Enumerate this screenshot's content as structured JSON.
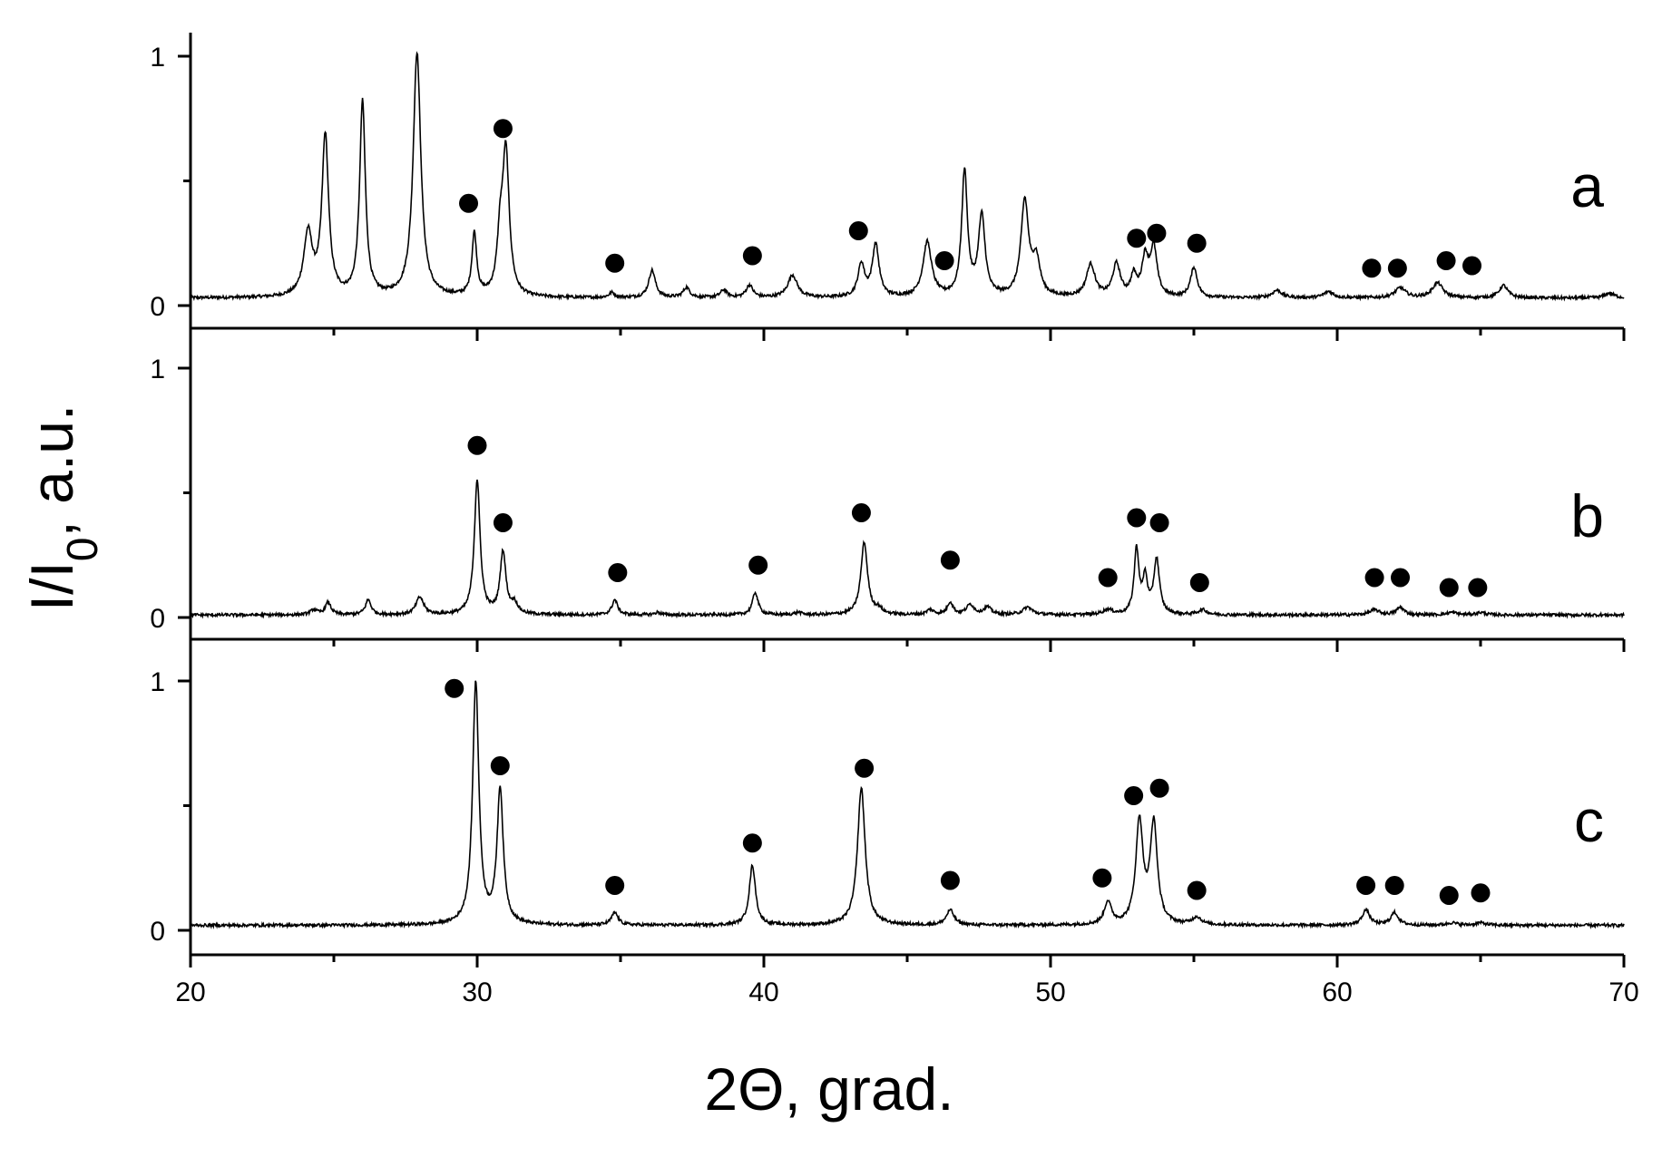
{
  "chart_data": {
    "type": "line",
    "xlabel": "2Θ, grad.",
    "ylabel": "I/I0, a.u.",
    "xlim": [
      20,
      70
    ],
    "ylim": [
      -0.1,
      1.1
    ],
    "xticks": [
      20,
      30,
      40,
      50,
      60,
      70
    ],
    "xtick_labels": [
      "20",
      "30",
      "40",
      "50",
      "60",
      "70"
    ],
    "yticks": [
      0,
      1
    ],
    "ytick_labels": [
      "0",
      "1"
    ],
    "grid": false,
    "legend": "none",
    "marker_symbol": "filled-circle",
    "line_color": "#000000",
    "panels": [
      {
        "label": "a",
        "baseline": 0.03,
        "peaks": [
          [
            24.1,
            0.25,
            0.18
          ],
          [
            24.7,
            0.64,
            0.14
          ],
          [
            26.0,
            0.78,
            0.12
          ],
          [
            27.9,
            0.98,
            0.16
          ],
          [
            29.9,
            0.25,
            0.1
          ],
          [
            30.8,
            0.2,
            0.12
          ],
          [
            31.0,
            0.57,
            0.14
          ],
          [
            34.7,
            0.02,
            0.12
          ],
          [
            36.1,
            0.11,
            0.14
          ],
          [
            37.3,
            0.04,
            0.14
          ],
          [
            38.6,
            0.03,
            0.14
          ],
          [
            39.5,
            0.05,
            0.14
          ],
          [
            41.0,
            0.09,
            0.2
          ],
          [
            43.4,
            0.13,
            0.14
          ],
          [
            43.9,
            0.21,
            0.14
          ],
          [
            45.7,
            0.22,
            0.18
          ],
          [
            47.0,
            0.5,
            0.12
          ],
          [
            47.6,
            0.32,
            0.14
          ],
          [
            49.1,
            0.38,
            0.16
          ],
          [
            49.5,
            0.14,
            0.16
          ],
          [
            51.4,
            0.13,
            0.18
          ],
          [
            52.3,
            0.13,
            0.16
          ],
          [
            52.9,
            0.08,
            0.12
          ],
          [
            53.3,
            0.15,
            0.14
          ],
          [
            53.6,
            0.19,
            0.14
          ],
          [
            55.0,
            0.12,
            0.14
          ],
          [
            57.9,
            0.03,
            0.2
          ],
          [
            59.7,
            0.025,
            0.2
          ],
          [
            62.2,
            0.04,
            0.22
          ],
          [
            63.5,
            0.06,
            0.22
          ],
          [
            65.8,
            0.05,
            0.18
          ],
          [
            69.5,
            0.02,
            0.2
          ]
        ],
        "markers": [
          {
            "x": 29.7,
            "y": 0.41
          },
          {
            "x": 30.9,
            "y": 0.71
          },
          {
            "x": 34.8,
            "y": 0.17
          },
          {
            "x": 39.6,
            "y": 0.2
          },
          {
            "x": 43.3,
            "y": 0.3
          },
          {
            "x": 46.3,
            "y": 0.18
          },
          {
            "x": 53.0,
            "y": 0.27
          },
          {
            "x": 53.7,
            "y": 0.29
          },
          {
            "x": 55.1,
            "y": 0.25
          },
          {
            "x": 61.2,
            "y": 0.15
          },
          {
            "x": 62.1,
            "y": 0.15
          },
          {
            "x": 63.8,
            "y": 0.18
          },
          {
            "x": 64.7,
            "y": 0.16
          }
        ]
      },
      {
        "label": "b",
        "baseline": 0.01,
        "peaks": [
          [
            24.3,
            0.02,
            0.14
          ],
          [
            24.8,
            0.05,
            0.12
          ],
          [
            26.2,
            0.06,
            0.12
          ],
          [
            28.0,
            0.07,
            0.16
          ],
          [
            30.0,
            0.54,
            0.12
          ],
          [
            30.9,
            0.25,
            0.12
          ],
          [
            31.3,
            0.04,
            0.14
          ],
          [
            34.8,
            0.06,
            0.12
          ],
          [
            36.3,
            0.01,
            0.12
          ],
          [
            39.7,
            0.09,
            0.12
          ],
          [
            41.2,
            0.01,
            0.14
          ],
          [
            43.5,
            0.29,
            0.14
          ],
          [
            44.0,
            0.02,
            0.14
          ],
          [
            45.8,
            0.02,
            0.14
          ],
          [
            46.5,
            0.05,
            0.12
          ],
          [
            47.2,
            0.04,
            0.16
          ],
          [
            47.8,
            0.03,
            0.16
          ],
          [
            49.2,
            0.03,
            0.2
          ],
          [
            52.0,
            0.02,
            0.2
          ],
          [
            53.0,
            0.26,
            0.1
          ],
          [
            53.3,
            0.14,
            0.1
          ],
          [
            53.7,
            0.22,
            0.12
          ],
          [
            55.3,
            0.02,
            0.18
          ],
          [
            61.3,
            0.02,
            0.2
          ],
          [
            62.2,
            0.03,
            0.16
          ],
          [
            64.0,
            0.01,
            0.2
          ],
          [
            65.0,
            0.01,
            0.2
          ]
        ],
        "markers": [
          {
            "x": 30.0,
            "y": 0.69
          },
          {
            "x": 30.9,
            "y": 0.38
          },
          {
            "x": 34.9,
            "y": 0.18
          },
          {
            "x": 39.8,
            "y": 0.21
          },
          {
            "x": 43.4,
            "y": 0.42
          },
          {
            "x": 46.5,
            "y": 0.23
          },
          {
            "x": 52.0,
            "y": 0.16
          },
          {
            "x": 53.0,
            "y": 0.4
          },
          {
            "x": 53.8,
            "y": 0.38
          },
          {
            "x": 55.2,
            "y": 0.14
          },
          {
            "x": 61.3,
            "y": 0.16
          },
          {
            "x": 62.2,
            "y": 0.16
          },
          {
            "x": 63.9,
            "y": 0.12
          },
          {
            "x": 64.9,
            "y": 0.12
          }
        ]
      },
      {
        "label": "c",
        "baseline": 0.02,
        "peaks": [
          [
            29.95,
            0.97,
            0.13
          ],
          [
            30.8,
            0.54,
            0.13
          ],
          [
            34.8,
            0.05,
            0.14
          ],
          [
            39.6,
            0.24,
            0.13
          ],
          [
            43.4,
            0.55,
            0.16
          ],
          [
            46.5,
            0.06,
            0.16
          ],
          [
            52.0,
            0.09,
            0.15
          ],
          [
            53.1,
            0.41,
            0.15
          ],
          [
            53.6,
            0.4,
            0.15
          ],
          [
            55.1,
            0.03,
            0.18
          ],
          [
            61.0,
            0.06,
            0.16
          ],
          [
            62.0,
            0.05,
            0.16
          ],
          [
            64.0,
            0.01,
            0.2
          ],
          [
            65.0,
            0.01,
            0.2
          ]
        ],
        "markers": [
          {
            "x": 29.2,
            "y": 0.97
          },
          {
            "x": 30.8,
            "y": 0.66
          },
          {
            "x": 34.8,
            "y": 0.18
          },
          {
            "x": 39.6,
            "y": 0.35
          },
          {
            "x": 43.5,
            "y": 0.65
          },
          {
            "x": 46.5,
            "y": 0.2
          },
          {
            "x": 51.8,
            "y": 0.21
          },
          {
            "x": 52.9,
            "y": 0.54
          },
          {
            "x": 53.8,
            "y": 0.57
          },
          {
            "x": 55.1,
            "y": 0.16
          },
          {
            "x": 61.0,
            "y": 0.18
          },
          {
            "x": 62.0,
            "y": 0.18
          },
          {
            "x": 63.9,
            "y": 0.14
          },
          {
            "x": 65.0,
            "y": 0.15
          }
        ]
      }
    ]
  }
}
